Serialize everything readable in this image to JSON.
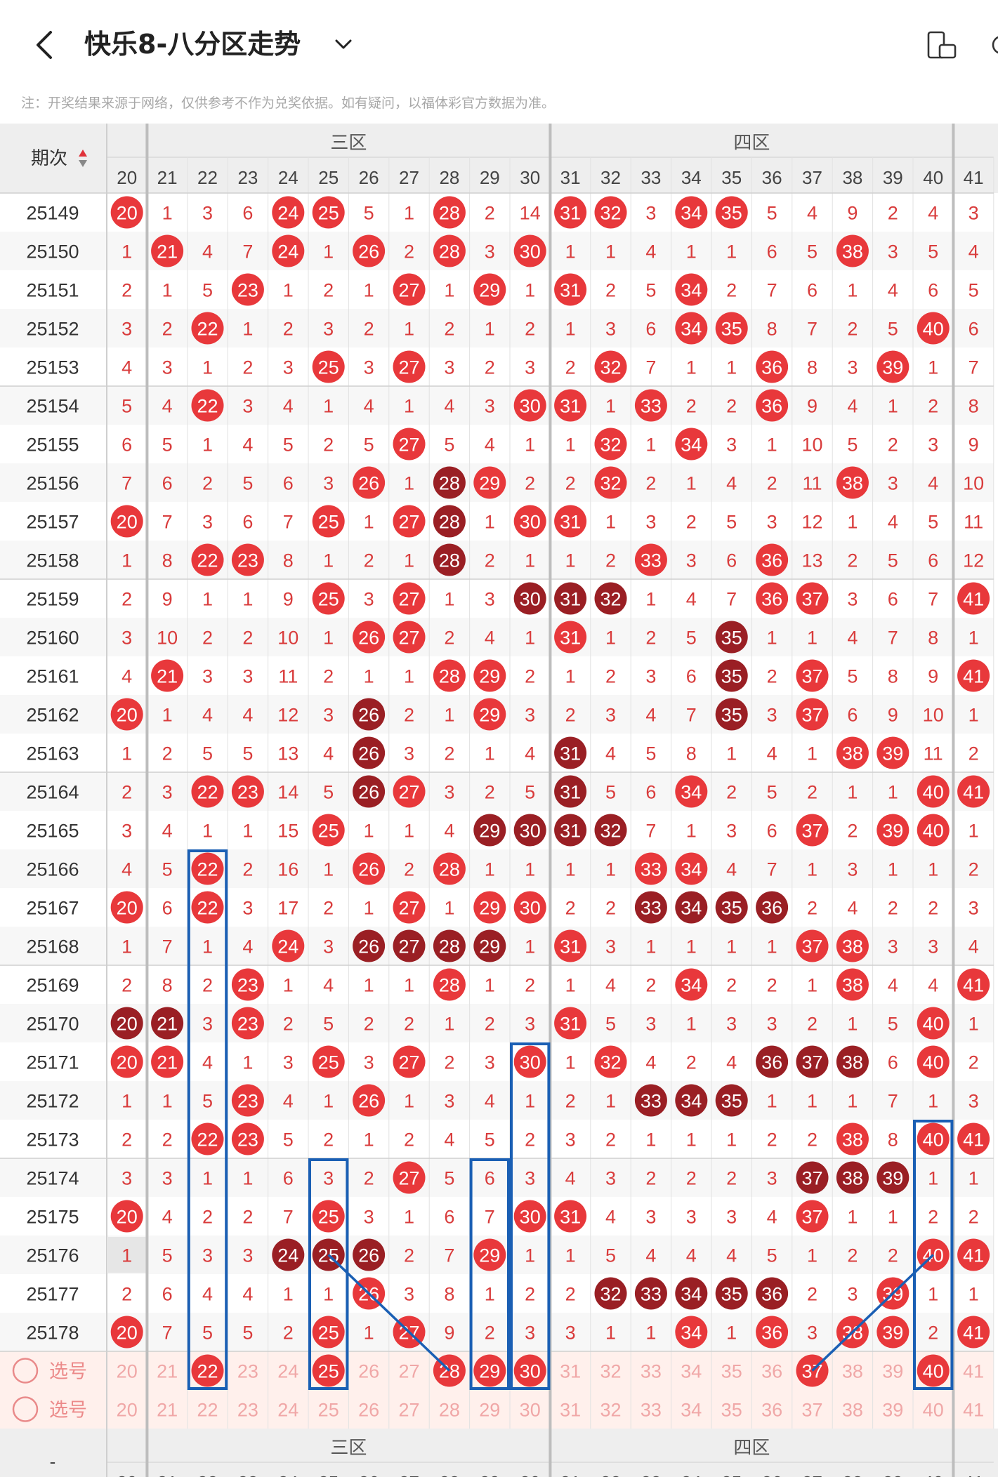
{
  "header": {
    "title": "快乐8-八分区走势",
    "notice": "注：开奖结果来源于网络，仅供参考不作为兑奖依据。如有疑问，以福体彩官方数据为准。"
  },
  "table": {
    "period_header": "期次",
    "zones": [
      {
        "name": "三区",
        "start": 21,
        "end": 30
      },
      {
        "name": "四区",
        "start": 31,
        "end": 40
      }
    ],
    "numbers": [
      20,
      21,
      22,
      23,
      24,
      25,
      26,
      27,
      28,
      29,
      30,
      31,
      32,
      33,
      34,
      35,
      36,
      37,
      38,
      39,
      40,
      41
    ],
    "rows": [
      {
        "period": "25149",
        "cells": [
          "R20",
          "1",
          "3",
          "6",
          "R24",
          "R25",
          "5",
          "1",
          "R28",
          "2",
          "14",
          "R31",
          "R32",
          "3",
          "R34",
          "R35",
          "5",
          "4",
          "9",
          "2",
          "4",
          "3"
        ]
      },
      {
        "period": "25150",
        "cells": [
          "1",
          "R21",
          "4",
          "7",
          "R24",
          "1",
          "R26",
          "2",
          "R28",
          "3",
          "R30",
          "1",
          "1",
          "4",
          "1",
          "1",
          "6",
          "5",
          "R38",
          "3",
          "5",
          "4"
        ]
      },
      {
        "period": "25151",
        "cells": [
          "2",
          "1",
          "5",
          "R23",
          "1",
          "2",
          "1",
          "R27",
          "1",
          "R29",
          "1",
          "R31",
          "2",
          "5",
          "R34",
          "2",
          "7",
          "6",
          "1",
          "4",
          "6",
          "5"
        ]
      },
      {
        "period": "25152",
        "cells": [
          "3",
          "2",
          "R22",
          "1",
          "2",
          "3",
          "2",
          "1",
          "2",
          "1",
          "2",
          "1",
          "3",
          "6",
          "R34",
          "R35",
          "8",
          "7",
          "2",
          "5",
          "R40",
          "6"
        ]
      },
      {
        "period": "25153",
        "cells": [
          "4",
          "3",
          "1",
          "2",
          "3",
          "R25",
          "3",
          "R27",
          "3",
          "2",
          "3",
          "2",
          "R32",
          "7",
          "1",
          "1",
          "R36",
          "8",
          "3",
          "R39",
          "1",
          "7"
        ]
      },
      {
        "period": "25154",
        "cells": [
          "5",
          "4",
          "R22",
          "3",
          "4",
          "1",
          "4",
          "1",
          "4",
          "3",
          "R30",
          "R31",
          "1",
          "R33",
          "2",
          "2",
          "R36",
          "9",
          "4",
          "1",
          "2",
          "8"
        ]
      },
      {
        "period": "25155",
        "cells": [
          "6",
          "5",
          "1",
          "4",
          "5",
          "2",
          "5",
          "R27",
          "5",
          "4",
          "1",
          "1",
          "R32",
          "1",
          "R34",
          "3",
          "1",
          "10",
          "5",
          "2",
          "3",
          "9"
        ]
      },
      {
        "period": "25156",
        "cells": [
          "7",
          "6",
          "2",
          "5",
          "6",
          "3",
          "R26",
          "1",
          "D28",
          "R29",
          "2",
          "2",
          "R32",
          "2",
          "1",
          "4",
          "2",
          "11",
          "R38",
          "3",
          "4",
          "10"
        ]
      },
      {
        "period": "25157",
        "cells": [
          "R20",
          "7",
          "3",
          "6",
          "7",
          "R25",
          "1",
          "R27",
          "D28",
          "1",
          "R30",
          "R31",
          "1",
          "3",
          "2",
          "5",
          "3",
          "12",
          "1",
          "4",
          "5",
          "11"
        ]
      },
      {
        "period": "25158",
        "cells": [
          "1",
          "8",
          "R22",
          "R23",
          "8",
          "1",
          "2",
          "1",
          "D28",
          "2",
          "1",
          "1",
          "2",
          "R33",
          "3",
          "6",
          "R36",
          "13",
          "2",
          "5",
          "6",
          "12"
        ]
      },
      {
        "period": "25159",
        "cells": [
          "2",
          "9",
          "1",
          "1",
          "9",
          "R25",
          "3",
          "R27",
          "1",
          "3",
          "D30",
          "D31",
          "D32",
          "1",
          "4",
          "7",
          "R36",
          "R37",
          "3",
          "6",
          "7",
          "R41"
        ]
      },
      {
        "period": "25160",
        "cells": [
          "3",
          "10",
          "2",
          "2",
          "10",
          "1",
          "R26",
          "R27",
          "2",
          "4",
          "1",
          "R31",
          "1",
          "2",
          "5",
          "D35",
          "1",
          "1",
          "4",
          "7",
          "8",
          "1"
        ]
      },
      {
        "period": "25161",
        "cells": [
          "4",
          "R21",
          "3",
          "3",
          "11",
          "2",
          "1",
          "1",
          "R28",
          "R29",
          "2",
          "1",
          "2",
          "3",
          "6",
          "D35",
          "2",
          "R37",
          "5",
          "8",
          "9",
          "R41"
        ]
      },
      {
        "period": "25162",
        "cells": [
          "R20",
          "1",
          "4",
          "4",
          "12",
          "3",
          "D26",
          "2",
          "1",
          "R29",
          "3",
          "2",
          "3",
          "4",
          "7",
          "D35",
          "3",
          "R37",
          "6",
          "9",
          "10",
          "1"
        ]
      },
      {
        "period": "25163",
        "cells": [
          "1",
          "2",
          "5",
          "5",
          "13",
          "4",
          "D26",
          "3",
          "2",
          "1",
          "4",
          "D31",
          "4",
          "5",
          "8",
          "1",
          "4",
          "1",
          "R38",
          "R39",
          "11",
          "2"
        ]
      },
      {
        "period": "25164",
        "cells": [
          "2",
          "3",
          "R22",
          "R23",
          "14",
          "5",
          "D26",
          "R27",
          "3",
          "2",
          "5",
          "D31",
          "5",
          "6",
          "R34",
          "2",
          "5",
          "2",
          "1",
          "1",
          "R40",
          "R41"
        ]
      },
      {
        "period": "25165",
        "cells": [
          "3",
          "4",
          "1",
          "1",
          "15",
          "R25",
          "1",
          "1",
          "4",
          "D29",
          "D30",
          "D31",
          "D32",
          "7",
          "1",
          "3",
          "6",
          "R37",
          "2",
          "R39",
          "R40",
          "1"
        ]
      },
      {
        "period": "25166",
        "cells": [
          "4",
          "5",
          "R22",
          "2",
          "16",
          "1",
          "R26",
          "2",
          "R28",
          "1",
          "1",
          "1",
          "1",
          "R33",
          "R34",
          "4",
          "7",
          "1",
          "3",
          "1",
          "1",
          "2"
        ]
      },
      {
        "period": "25167",
        "cells": [
          "R20",
          "6",
          "R22",
          "3",
          "17",
          "2",
          "1",
          "R27",
          "1",
          "R29",
          "R30",
          "2",
          "2",
          "D33",
          "D34",
          "D35",
          "D36",
          "2",
          "4",
          "2",
          "2",
          "3"
        ]
      },
      {
        "period": "25168",
        "cells": [
          "1",
          "7",
          "1",
          "4",
          "R24",
          "3",
          "D26",
          "D27",
          "D28",
          "D29",
          "1",
          "R31",
          "3",
          "1",
          "1",
          "1",
          "1",
          "R37",
          "R38",
          "3",
          "3",
          "4"
        ]
      },
      {
        "period": "25169",
        "cells": [
          "2",
          "8",
          "2",
          "R23",
          "1",
          "4",
          "1",
          "1",
          "R28",
          "1",
          "2",
          "1",
          "4",
          "2",
          "R34",
          "2",
          "2",
          "1",
          "R38",
          "4",
          "4",
          "R41"
        ]
      },
      {
        "period": "25170",
        "cells": [
          "D20",
          "D21",
          "3",
          "R23",
          "2",
          "5",
          "2",
          "2",
          "1",
          "2",
          "3",
          "R31",
          "5",
          "3",
          "1",
          "3",
          "3",
          "2",
          "1",
          "5",
          "R40",
          "1"
        ]
      },
      {
        "period": "25171",
        "cells": [
          "R20",
          "R21",
          "4",
          "1",
          "3",
          "R25",
          "3",
          "R27",
          "2",
          "3",
          "R30",
          "1",
          "R32",
          "4",
          "2",
          "4",
          "D36",
          "D37",
          "D38",
          "6",
          "R40",
          "2"
        ]
      },
      {
        "period": "25172",
        "cells": [
          "1",
          "1",
          "5",
          "R23",
          "4",
          "1",
          "R26",
          "1",
          "3",
          "4",
          "1",
          "2",
          "1",
          "D33",
          "D34",
          "D35",
          "1",
          "1",
          "1",
          "7",
          "1",
          "3"
        ]
      },
      {
        "period": "25173",
        "cells": [
          "2",
          "2",
          "R22",
          "R23",
          "5",
          "2",
          "1",
          "2",
          "4",
          "5",
          "2",
          "3",
          "2",
          "1",
          "1",
          "1",
          "2",
          "2",
          "R38",
          "8",
          "R40",
          "R41"
        ]
      },
      {
        "period": "25174",
        "cells": [
          "3",
          "3",
          "1",
          "1",
          "6",
          "3",
          "2",
          "R27",
          "5",
          "6",
          "3",
          "4",
          "3",
          "2",
          "2",
          "2",
          "3",
          "D37",
          "D38",
          "D39",
          "1",
          "1"
        ]
      },
      {
        "period": "25175",
        "cells": [
          "R20",
          "4",
          "2",
          "2",
          "7",
          "R25",
          "3",
          "1",
          "6",
          "7",
          "R30",
          "R31",
          "4",
          "3",
          "3",
          "3",
          "4",
          "R37",
          "1",
          "1",
          "2",
          "2"
        ]
      },
      {
        "period": "25176",
        "cells": [
          "1",
          "5",
          "3",
          "3",
          "D24",
          "D25",
          "D26",
          "2",
          "7",
          "R29",
          "1",
          "1",
          "5",
          "4",
          "4",
          "4",
          "5",
          "1",
          "2",
          "2",
          "R40",
          "R41"
        ]
      },
      {
        "period": "25177",
        "cells": [
          "2",
          "6",
          "4",
          "4",
          "1",
          "1",
          "R26",
          "3",
          "8",
          "1",
          "2",
          "2",
          "D32",
          "D33",
          "D34",
          "D35",
          "D36",
          "2",
          "3",
          "R39",
          "1",
          "1"
        ]
      },
      {
        "period": "25178",
        "cells": [
          "R20",
          "7",
          "5",
          "5",
          "2",
          "R25",
          "1",
          "R27",
          "9",
          "2",
          "3",
          "3",
          "1",
          "1",
          "R34",
          "1",
          "R36",
          "3",
          "R38",
          "R39",
          "2",
          "R41"
        ]
      }
    ],
    "pick_rows": [
      {
        "label": "选号",
        "selected": [
          22,
          25,
          28,
          29,
          30,
          37,
          40
        ]
      },
      {
        "label": "选号",
        "selected": []
      }
    ],
    "footer_left": "-",
    "colors": {
      "ball_red": "#e8383b",
      "ball_dark": "#9a1f24",
      "text_red": "#d93c3c",
      "box_blue": "#1a5fb4",
      "pick_bg": "#fff0ec",
      "header_bg": "#eeeeee"
    }
  }
}
